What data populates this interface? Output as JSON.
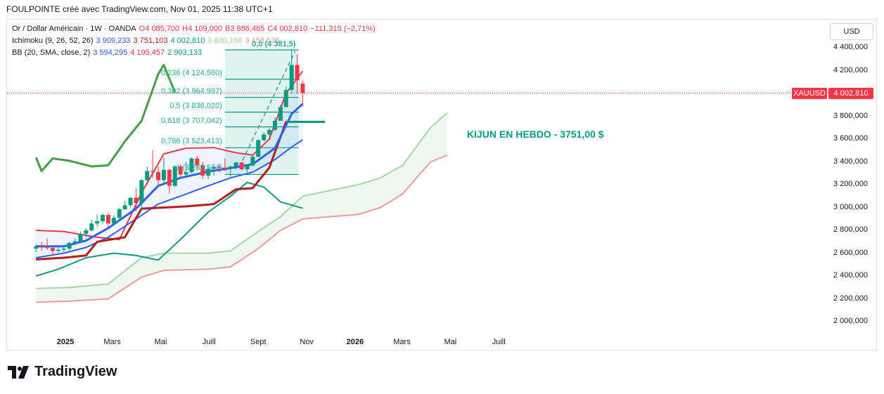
{
  "header": "FOULPOINTE créé avec TradingView.com, Nov 01, 2025 11:38 UTC+1",
  "legend": {
    "symbol_line": [
      {
        "text": "Or / Dollar Américain · 1W · OANDA",
        "color": "#131722"
      },
      {
        "text": "O4 085,700",
        "color": "#f23645"
      },
      {
        "text": "H4 109,000",
        "color": "#f23645"
      },
      {
        "text": "B3 886,465",
        "color": "#f23645"
      },
      {
        "text": "C4 002,810",
        "color": "#f23645"
      },
      {
        "text": "−111,315 (−2,71%)",
        "color": "#f23645"
      }
    ],
    "ichimoku_line": [
      {
        "text": "Ichimoku (9, 26, 52, 26)",
        "color": "#131722"
      },
      {
        "text": "3 909,233",
        "color": "#2962ff"
      },
      {
        "text": "3 751,103",
        "color": "#b71c1c"
      },
      {
        "text": "4 002,810",
        "color": "#089981"
      },
      {
        "text": "3 830,168",
        "color": "#a5d6a7"
      },
      {
        "text": "3 458,536",
        "color": "#ef9a9a"
      }
    ],
    "bb_line": [
      {
        "text": "BB (20, SMA, close, 2)",
        "color": "#131722"
      },
      {
        "text": "3 594,295",
        "color": "#2962ff"
      },
      {
        "text": "4 195,457",
        "color": "#f23645"
      },
      {
        "text": "2 993,133",
        "color": "#089981"
      }
    ]
  },
  "currency_button": "USD",
  "price_tag": {
    "symbol": "XAUUSD",
    "price": "4 002,810",
    "value": 4002.81,
    "color": "#f23645"
  },
  "annotation": "KIJUN EN HEBDO - 3751,00 $",
  "fib_labels": [
    {
      "text": "0,236 (4 124,580)",
      "value": 4124.58
    },
    {
      "text": "0,382 (3 964,997)",
      "value": 3964.997
    },
    {
      "text": "0,5 (3 836,020)",
      "value": 3836.02
    },
    {
      "text": "0,618 (3 707,042)",
      "value": 3707.042
    },
    {
      "text": "0,786 (3 523,413)",
      "value": 3523.413
    },
    {
      "text": "1 (3 289,504)",
      "value": 3289.504
    }
  ],
  "fib_top_label": "0,0 (4 381,5)",
  "brand": "TradingView",
  "chart_data": {
    "type": "candlestick",
    "symbol": "XAUUSD",
    "timeframe": "1W",
    "y_axis": {
      "ticks": [
        2000000,
        2200000,
        2400000,
        2600000,
        2800000,
        3000000,
        3200000,
        3400000,
        3600000,
        3800000,
        4000000,
        4200000,
        4400000
      ],
      "tick_labels": [
        "2 000,000",
        "2 200,000",
        "2 400,000",
        "2 600,000",
        "2 800,000",
        "3 000,000",
        "3 200,000",
        "3 400,000",
        "3 600,000",
        "3 800,000",
        "4 000,000",
        "4 200,000",
        "4 400,000"
      ]
    },
    "x_axis": {
      "labels": [
        {
          "text": "2025",
          "bold": true,
          "date": "2025-01-01"
        },
        {
          "text": "Mars",
          "bold": false,
          "date": "2025-03-01"
        },
        {
          "text": "Mai",
          "bold": false,
          "date": "2025-05-01"
        },
        {
          "text": "Juill",
          "bold": false,
          "date": "2025-07-01"
        },
        {
          "text": "Sept",
          "bold": false,
          "date": "2025-09-01"
        },
        {
          "text": "Nov",
          "bold": false,
          "date": "2025-11-01"
        },
        {
          "text": "2026",
          "bold": true,
          "date": "2026-01-01"
        },
        {
          "text": "Mars",
          "bold": false,
          "date": "2026-03-01"
        },
        {
          "text": "Mai",
          "bold": false,
          "date": "2026-05-01"
        },
        {
          "text": "Juill",
          "bold": false,
          "date": "2026-07-01"
        }
      ]
    },
    "candles": [
      {
        "date": "2024-11-25",
        "o": 2640,
        "h": 2680,
        "l": 2610,
        "c": 2660
      },
      {
        "date": "2024-12-02",
        "o": 2660,
        "h": 2700,
        "l": 2620,
        "c": 2650
      },
      {
        "date": "2024-12-09",
        "o": 2650,
        "h": 2730,
        "l": 2630,
        "c": 2645
      },
      {
        "date": "2024-12-16",
        "o": 2645,
        "h": 2670,
        "l": 2580,
        "c": 2620
      },
      {
        "date": "2024-12-23",
        "o": 2620,
        "h": 2650,
        "l": 2600,
        "c": 2630
      },
      {
        "date": "2024-12-30",
        "o": 2630,
        "h": 2670,
        "l": 2610,
        "c": 2640
      },
      {
        "date": "2025-01-06",
        "o": 2640,
        "h": 2700,
        "l": 2620,
        "c": 2690
      },
      {
        "date": "2025-01-13",
        "o": 2690,
        "h": 2730,
        "l": 2670,
        "c": 2705
      },
      {
        "date": "2025-01-20",
        "o": 2705,
        "h": 2790,
        "l": 2700,
        "c": 2770
      },
      {
        "date": "2025-01-27",
        "o": 2770,
        "h": 2820,
        "l": 2740,
        "c": 2800
      },
      {
        "date": "2025-02-03",
        "o": 2800,
        "h": 2890,
        "l": 2790,
        "c": 2860
      },
      {
        "date": "2025-02-10",
        "o": 2860,
        "h": 2940,
        "l": 2830,
        "c": 2880
      },
      {
        "date": "2025-02-17",
        "o": 2880,
        "h": 2950,
        "l": 2860,
        "c": 2935
      },
      {
        "date": "2025-02-24",
        "o": 2935,
        "h": 2955,
        "l": 2830,
        "c": 2860
      },
      {
        "date": "2025-03-03",
        "o": 2860,
        "h": 2930,
        "l": 2840,
        "c": 2910
      },
      {
        "date": "2025-03-10",
        "o": 2910,
        "h": 3000,
        "l": 2880,
        "c": 2985
      },
      {
        "date": "2025-03-17",
        "o": 2985,
        "h": 3060,
        "l": 2980,
        "c": 3020
      },
      {
        "date": "2025-03-24",
        "o": 3020,
        "h": 3090,
        "l": 3000,
        "c": 3085
      },
      {
        "date": "2025-03-31",
        "o": 3085,
        "h": 3170,
        "l": 2970,
        "c": 3040
      },
      {
        "date": "2025-04-07",
        "o": 3040,
        "h": 3250,
        "l": 2970,
        "c": 3240
      },
      {
        "date": "2025-04-14",
        "o": 3240,
        "h": 3360,
        "l": 3200,
        "c": 3320
      },
      {
        "date": "2025-04-21",
        "o": 3320,
        "h": 3500,
        "l": 3260,
        "c": 3310
      },
      {
        "date": "2025-04-28",
        "o": 3310,
        "h": 3360,
        "l": 3200,
        "c": 3240
      },
      {
        "date": "2025-05-05",
        "o": 3240,
        "h": 3440,
        "l": 3200,
        "c": 3330
      },
      {
        "date": "2025-05-12",
        "o": 3330,
        "h": 3340,
        "l": 3120,
        "c": 3190
      },
      {
        "date": "2025-05-19",
        "o": 3190,
        "h": 3370,
        "l": 3180,
        "c": 3360
      },
      {
        "date": "2025-05-26",
        "o": 3360,
        "h": 3380,
        "l": 3250,
        "c": 3290
      },
      {
        "date": "2025-06-02",
        "o": 3290,
        "h": 3400,
        "l": 3280,
        "c": 3310
      },
      {
        "date": "2025-06-09",
        "o": 3310,
        "h": 3440,
        "l": 3300,
        "c": 3430
      },
      {
        "date": "2025-06-16",
        "o": 3430,
        "h": 3450,
        "l": 3340,
        "c": 3370
      },
      {
        "date": "2025-06-23",
        "o": 3370,
        "h": 3400,
        "l": 3250,
        "c": 3280
      },
      {
        "date": "2025-06-30",
        "o": 3280,
        "h": 3360,
        "l": 3250,
        "c": 3340
      },
      {
        "date": "2025-07-07",
        "o": 3340,
        "h": 3380,
        "l": 3280,
        "c": 3355
      },
      {
        "date": "2025-07-14",
        "o": 3355,
        "h": 3380,
        "l": 3310,
        "c": 3350
      },
      {
        "date": "2025-07-21",
        "o": 3350,
        "h": 3430,
        "l": 3320,
        "c": 3340
      },
      {
        "date": "2025-07-28",
        "o": 3340,
        "h": 3370,
        "l": 3270,
        "c": 3360
      },
      {
        "date": "2025-08-04",
        "o": 3360,
        "h": 3400,
        "l": 3330,
        "c": 3395
      },
      {
        "date": "2025-08-11",
        "o": 3395,
        "h": 3400,
        "l": 3330,
        "c": 3335
      },
      {
        "date": "2025-08-18",
        "o": 3335,
        "h": 3380,
        "l": 3310,
        "c": 3370
      },
      {
        "date": "2025-08-25",
        "o": 3370,
        "h": 3460,
        "l": 3360,
        "c": 3445
      },
      {
        "date": "2025-09-01",
        "o": 3445,
        "h": 3600,
        "l": 3440,
        "c": 3590
      },
      {
        "date": "2025-09-08",
        "o": 3590,
        "h": 3660,
        "l": 3580,
        "c": 3640
      },
      {
        "date": "2025-09-15",
        "o": 3640,
        "h": 3700,
        "l": 3620,
        "c": 3680
      },
      {
        "date": "2025-09-22",
        "o": 3680,
        "h": 3790,
        "l": 3670,
        "c": 3760
      },
      {
        "date": "2025-09-29",
        "o": 3760,
        "h": 3900,
        "l": 3760,
        "c": 3880
      },
      {
        "date": "2025-10-06",
        "o": 3880,
        "h": 4060,
        "l": 3880,
        "c": 4030
      },
      {
        "date": "2025-10-13",
        "o": 4030,
        "h": 4380,
        "l": 4000,
        "c": 4250
      },
      {
        "date": "2025-10-20",
        "o": 4250,
        "h": 4340,
        "l": 4000,
        "c": 4115
      },
      {
        "date": "2025-10-27",
        "o": 4085.7,
        "h": 4109,
        "l": 3886.465,
        "c": 4002.81
      }
    ],
    "indicators": {
      "bb_upper": {
        "color": "#f23645",
        "points": [
          [
            "2024-11-25",
            2800
          ],
          [
            "2024-12-30",
            2790
          ],
          [
            "2025-02-10",
            2740
          ],
          [
            "2025-03-10",
            2720
          ],
          [
            "2025-04-07",
            3130
          ],
          [
            "2025-05-05",
            3470
          ],
          [
            "2025-06-02",
            3520
          ],
          [
            "2025-07-07",
            3525
          ],
          [
            "2025-08-04",
            3480
          ],
          [
            "2025-08-25",
            3460
          ],
          [
            "2025-09-15",
            3600
          ],
          [
            "2025-10-06",
            4000
          ],
          [
            "2025-10-27",
            4195
          ]
        ]
      },
      "bb_basis": {
        "color": "#2962ff",
        "points": [
          [
            "2024-11-25",
            2660
          ],
          [
            "2024-12-30",
            2660
          ],
          [
            "2025-01-27",
            2710
          ],
          [
            "2025-02-24",
            2820
          ],
          [
            "2025-03-31",
            2990
          ],
          [
            "2025-04-28",
            3190
          ],
          [
            "2025-05-26",
            3260
          ],
          [
            "2025-06-30",
            3315
          ],
          [
            "2025-07-28",
            3345
          ],
          [
            "2025-08-25",
            3380
          ],
          [
            "2025-09-22",
            3520
          ],
          [
            "2025-10-13",
            3820
          ],
          [
            "2025-10-27",
            3909
          ]
        ]
      },
      "tenkan": {
        "color": "#2962ff",
        "points": [
          [
            "2024-11-25",
            2560
          ],
          [
            "2024-12-30",
            2600
          ],
          [
            "2025-01-27",
            2650
          ],
          [
            "2025-02-24",
            2740
          ],
          [
            "2025-03-31",
            2900
          ],
          [
            "2025-04-28",
            3030
          ],
          [
            "2025-05-26",
            3100
          ],
          [
            "2025-06-30",
            3190
          ],
          [
            "2025-07-28",
            3260
          ],
          [
            "2025-08-25",
            3310
          ],
          [
            "2025-09-22",
            3420
          ],
          [
            "2025-10-13",
            3530
          ],
          [
            "2025-10-27",
            3594
          ]
        ]
      },
      "kijun": {
        "color": "#b71c1c",
        "points": [
          [
            "2024-11-25",
            2545
          ],
          [
            "2024-12-30",
            2560
          ],
          [
            "2025-01-27",
            2580
          ],
          [
            "2025-02-10",
            2700
          ],
          [
            "2025-03-17",
            2740
          ],
          [
            "2025-04-07",
            2990
          ],
          [
            "2025-05-05",
            3000
          ],
          [
            "2025-06-02",
            3010
          ],
          [
            "2025-07-07",
            3030
          ],
          [
            "2025-08-04",
            3160
          ],
          [
            "2025-08-25",
            3170
          ],
          [
            "2025-09-15",
            3350
          ],
          [
            "2025-10-06",
            3751
          ],
          [
            "2025-10-27",
            3751
          ]
        ]
      },
      "chikou": {
        "color": "#43a047",
        "points": [
          [
            "2024-11-25",
            3440
          ],
          [
            "2024-12-02",
            3320
          ],
          [
            "2024-12-16",
            3430
          ],
          [
            "2025-01-06",
            3410
          ],
          [
            "2025-02-03",
            3360
          ],
          [
            "2025-02-24",
            3370
          ],
          [
            "2025-03-17",
            3580
          ],
          [
            "2025-04-07",
            3760
          ],
          [
            "2025-04-28",
            4170
          ],
          [
            "2025-05-05",
            4250
          ],
          [
            "2025-05-19",
            4010
          ]
        ]
      },
      "lagging_span": {
        "color": "#089981",
        "points": [
          [
            "2024-11-25",
            2400
          ],
          [
            "2024-12-23",
            2460
          ],
          [
            "2025-01-27",
            2560
          ],
          [
            "2025-03-03",
            2600
          ],
          [
            "2025-03-31",
            2580
          ],
          [
            "2025-04-28",
            2540
          ],
          [
            "2025-05-26",
            2720
          ],
          [
            "2025-06-30",
            2960
          ],
          [
            "2025-07-28",
            3100
          ],
          [
            "2025-08-18",
            3220
          ],
          [
            "2025-09-08",
            3180
          ],
          [
            "2025-09-29",
            3050
          ],
          [
            "2025-10-27",
            2993
          ]
        ]
      },
      "senkou_a": {
        "color": "#a5d6a7",
        "points": [
          [
            "2024-11-25",
            2290
          ],
          [
            "2025-01-06",
            2300
          ],
          [
            "2025-02-24",
            2330
          ],
          [
            "2025-04-07",
            2560
          ],
          [
            "2025-05-05",
            2600
          ],
          [
            "2025-06-30",
            2600
          ],
          [
            "2025-07-28",
            2620
          ],
          [
            "2025-09-01",
            2790
          ],
          [
            "2025-09-29",
            2920
          ],
          [
            "2025-10-27",
            3100
          ],
          [
            "2025-12-01",
            3150
          ],
          [
            "2026-01-05",
            3200
          ],
          [
            "2026-02-02",
            3260
          ],
          [
            "2026-03-02",
            3370
          ],
          [
            "2026-04-06",
            3700
          ],
          [
            "2026-04-27",
            3830
          ]
        ]
      },
      "senkou_b": {
        "color": "#ef9a9a",
        "points": [
          [
            "2024-11-25",
            2170
          ],
          [
            "2025-01-06",
            2180
          ],
          [
            "2025-02-24",
            2200
          ],
          [
            "2025-04-07",
            2390
          ],
          [
            "2025-05-05",
            2450
          ],
          [
            "2025-06-30",
            2460
          ],
          [
            "2025-07-28",
            2480
          ],
          [
            "2025-09-01",
            2640
          ],
          [
            "2025-09-29",
            2800
          ],
          [
            "2025-10-27",
            2900
          ],
          [
            "2025-12-01",
            2920
          ],
          [
            "2026-01-05",
            2940
          ],
          [
            "2026-02-02",
            3000
          ],
          [
            "2026-03-02",
            3120
          ],
          [
            "2026-04-06",
            3400
          ],
          [
            "2026-04-27",
            3458
          ]
        ]
      }
    },
    "fibonacci": {
      "from_date": "2025-07-21",
      "to_date": "2025-10-20",
      "levels": [
        {
          "ratio": 0,
          "value": 4381.5
        },
        {
          "ratio": 0.236,
          "value": 4124.58
        },
        {
          "ratio": 0.382,
          "value": 3964.997
        },
        {
          "ratio": 0.5,
          "value": 3836.02
        },
        {
          "ratio": 0.618,
          "value": 3707.042
        },
        {
          "ratio": 0.786,
          "value": 3523.413
        },
        {
          "ratio": 1,
          "value": 3289.504
        }
      ]
    },
    "kijun_marker": {
      "value": 3751.0,
      "from_date": "2025-10-06",
      "to_date": "2025-11-24"
    }
  }
}
